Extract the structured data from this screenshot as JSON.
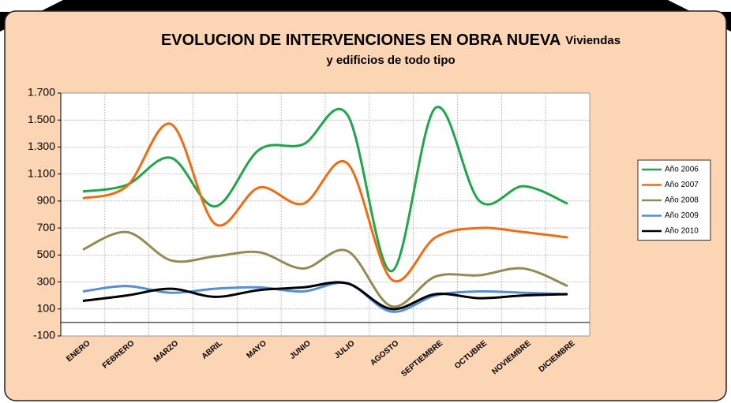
{
  "chart_data": {
    "type": "line",
    "title": "EVOLUCION DE INTERVENCIONES EN OBRA NUEVA",
    "subtitle": [
      "Viviendas",
      "y edificios de todo tipo"
    ],
    "categories": [
      "ENERO",
      "FEBRERO",
      "MARZO",
      "ABRIL",
      "MAYO",
      "JUNIO",
      "JULIO",
      "AGOSTO",
      "SEPTIEMBRE",
      "OCTUBRE",
      "NOVIEMBRE",
      "DICIEMBRE"
    ],
    "series": [
      {
        "name": "Año 2006",
        "color": "#1fa64a",
        "values": [
          970,
          1020,
          1220,
          860,
          1280,
          1320,
          1540,
          380,
          1590,
          900,
          1010,
          880
        ]
      },
      {
        "name": "Año 2007",
        "color": "#f26b10",
        "values": [
          920,
          1010,
          1470,
          730,
          1000,
          880,
          1180,
          320,
          630,
          700,
          670,
          630
        ]
      },
      {
        "name": "Año 2008",
        "color": "#948a54",
        "values": [
          540,
          670,
          460,
          490,
          520,
          400,
          530,
          120,
          340,
          350,
          400,
          270
        ]
      },
      {
        "name": "Año 2009",
        "color": "#558ed5",
        "values": [
          230,
          270,
          220,
          250,
          260,
          230,
          290,
          80,
          200,
          230,
          220,
          210
        ]
      },
      {
        "name": "Año 2010",
        "color": "#000000",
        "values": [
          160,
          200,
          250,
          190,
          240,
          260,
          290,
          100,
          210,
          180,
          200,
          210
        ]
      }
    ],
    "ylim": [
      -100,
      1700
    ],
    "yticks": [
      -100,
      100,
      300,
      500,
      700,
      900,
      {
        "value": 1100,
        "label": "1.100"
      },
      {
        "value": 1300,
        "label": "1.300"
      },
      {
        "value": 1500,
        "label": "1.500"
      },
      {
        "value": 1700,
        "label": "1.700"
      }
    ],
    "grid": true,
    "legend": "right",
    "smooth": true
  }
}
